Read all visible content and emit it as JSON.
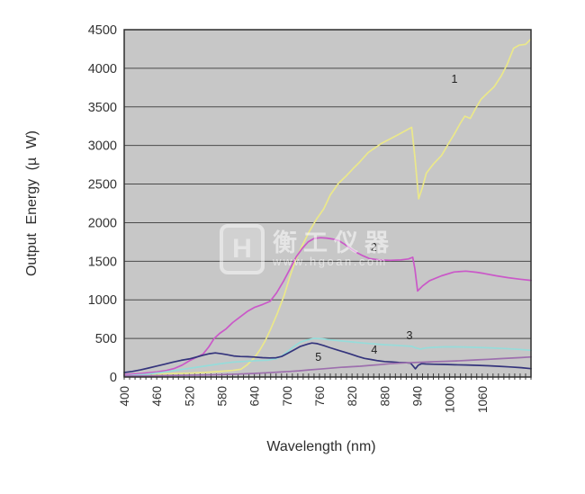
{
  "watermark": {
    "logo_letter": "H",
    "brand": "衡工仪器",
    "url": "www.hgoan.com"
  },
  "chart_data": {
    "type": "line",
    "title": "",
    "xlabel": "Wavelength (nm)",
    "ylabel": "Output Energy (µ W)",
    "xlim": [
      400,
      1150
    ],
    "ylim": [
      0,
      4500
    ],
    "x_ticks": [
      400,
      460,
      520,
      580,
      640,
      700,
      760,
      820,
      880,
      940,
      1000,
      1060
    ],
    "x_minor_tick_step": 10,
    "x_tick_label_rotation": -90,
    "y_ticks": [
      0,
      500,
      1000,
      1500,
      2000,
      2500,
      3000,
      3500,
      4000,
      4500
    ],
    "grid": "horizontal-only",
    "legend": "none (series identified by numeric labels printed on the plot)",
    "colors": {
      "plot_bg": "#c7c7c7",
      "grid_line": "#4a4a4a",
      "plot_border": "#2f2f2f",
      "axis_text": "#333333",
      "series_label_text": "#222222"
    },
    "series": [
      {
        "name": "1",
        "color": "#ebe88a",
        "label_pos": [
          1009,
          3810
        ],
        "points": [
          [
            400,
            30
          ],
          [
            430,
            35
          ],
          [
            460,
            40
          ],
          [
            490,
            45
          ],
          [
            520,
            50
          ],
          [
            550,
            60
          ],
          [
            580,
            75
          ],
          [
            600,
            85
          ],
          [
            615,
            100
          ],
          [
            627,
            160
          ],
          [
            640,
            250
          ],
          [
            650,
            350
          ],
          [
            660,
            470
          ],
          [
            670,
            620
          ],
          [
            682,
            820
          ],
          [
            695,
            1060
          ],
          [
            705,
            1290
          ],
          [
            716,
            1515
          ],
          [
            728,
            1700
          ],
          [
            740,
            1870
          ],
          [
            755,
            2050
          ],
          [
            768,
            2180
          ],
          [
            780,
            2360
          ],
          [
            795,
            2510
          ],
          [
            810,
            2610
          ],
          [
            822,
            2700
          ],
          [
            832,
            2770
          ],
          [
            850,
            2910
          ],
          [
            875,
            3030
          ],
          [
            905,
            3140
          ],
          [
            930,
            3235
          ],
          [
            936,
            2850
          ],
          [
            943,
            2310
          ],
          [
            950,
            2460
          ],
          [
            957,
            2640
          ],
          [
            970,
            2760
          ],
          [
            985,
            2870
          ],
          [
            1000,
            3050
          ],
          [
            1008,
            3140
          ],
          [
            1019,
            3280
          ],
          [
            1028,
            3380
          ],
          [
            1038,
            3350
          ],
          [
            1048,
            3480
          ],
          [
            1058,
            3600
          ],
          [
            1070,
            3680
          ],
          [
            1082,
            3760
          ],
          [
            1095,
            3900
          ],
          [
            1106,
            4050
          ],
          [
            1118,
            4260
          ],
          [
            1128,
            4300
          ],
          [
            1140,
            4310
          ],
          [
            1150,
            4380
          ]
        ]
      },
      {
        "name": "2",
        "color": "#ca58c8",
        "label_pos": [
          860,
          1632
        ],
        "points": [
          [
            400,
            30
          ],
          [
            430,
            45
          ],
          [
            460,
            65
          ],
          [
            478,
            85
          ],
          [
            492,
            110
          ],
          [
            507,
            155
          ],
          [
            520,
            210
          ],
          [
            533,
            255
          ],
          [
            545,
            295
          ],
          [
            556,
            390
          ],
          [
            566,
            500
          ],
          [
            576,
            565
          ],
          [
            588,
            625
          ],
          [
            600,
            705
          ],
          [
            614,
            780
          ],
          [
            628,
            855
          ],
          [
            641,
            905
          ],
          [
            655,
            940
          ],
          [
            669,
            980
          ],
          [
            681,
            1090
          ],
          [
            694,
            1245
          ],
          [
            706,
            1405
          ],
          [
            717,
            1555
          ],
          [
            728,
            1665
          ],
          [
            739,
            1750
          ],
          [
            750,
            1795
          ],
          [
            762,
            1805
          ],
          [
            773,
            1800
          ],
          [
            784,
            1788
          ],
          [
            795,
            1770
          ],
          [
            806,
            1722
          ],
          [
            818,
            1662
          ],
          [
            829,
            1612
          ],
          [
            840,
            1572
          ],
          [
            852,
            1535
          ],
          [
            870,
            1518
          ],
          [
            890,
            1512
          ],
          [
            910,
            1518
          ],
          [
            924,
            1530
          ],
          [
            932,
            1552
          ],
          [
            936,
            1400
          ],
          [
            941,
            1115
          ],
          [
            950,
            1180
          ],
          [
            963,
            1248
          ],
          [
            985,
            1312
          ],
          [
            1008,
            1360
          ],
          [
            1030,
            1372
          ],
          [
            1050,
            1357
          ],
          [
            1063,
            1342
          ],
          [
            1086,
            1312
          ],
          [
            1108,
            1287
          ],
          [
            1130,
            1267
          ],
          [
            1150,
            1252
          ]
        ]
      },
      {
        "name": "3",
        "color": "#96dcda",
        "label_pos": [
          926,
          490
        ],
        "points": [
          [
            400,
            15
          ],
          [
            440,
            35
          ],
          [
            470,
            60
          ],
          [
            500,
            92
          ],
          [
            530,
            122
          ],
          [
            556,
            150
          ],
          [
            580,
            175
          ],
          [
            600,
            192
          ],
          [
            620,
            202
          ],
          [
            645,
            212
          ],
          [
            665,
            218
          ],
          [
            680,
            238
          ],
          [
            690,
            272
          ],
          [
            700,
            322
          ],
          [
            712,
            392
          ],
          [
            725,
            452
          ],
          [
            738,
            482
          ],
          [
            750,
            500
          ],
          [
            765,
            495
          ],
          [
            780,
            481
          ],
          [
            800,
            468
          ],
          [
            820,
            455
          ],
          [
            840,
            441
          ],
          [
            860,
            429
          ],
          [
            880,
            419
          ],
          [
            900,
            412
          ],
          [
            915,
            405
          ],
          [
            930,
            398
          ],
          [
            938,
            376
          ],
          [
            946,
            362
          ],
          [
            956,
            376
          ],
          [
            970,
            385
          ],
          [
            990,
            391
          ],
          [
            1012,
            390
          ],
          [
            1040,
            386
          ],
          [
            1070,
            379
          ],
          [
            1100,
            369
          ],
          [
            1126,
            359
          ],
          [
            1150,
            346
          ]
        ]
      },
      {
        "name": "4",
        "color": "#34347c",
        "label_pos": [
          861,
          303
        ],
        "points": [
          [
            400,
            58
          ],
          [
            415,
            72
          ],
          [
            430,
            92
          ],
          [
            445,
            117
          ],
          [
            460,
            142
          ],
          [
            475,
            167
          ],
          [
            490,
            194
          ],
          [
            505,
            217
          ],
          [
            520,
            234
          ],
          [
            532,
            257
          ],
          [
            545,
            282
          ],
          [
            557,
            302
          ],
          [
            568,
            313
          ],
          [
            580,
            301
          ],
          [
            590,
            289
          ],
          [
            602,
            273
          ],
          [
            614,
            266
          ],
          [
            627,
            263
          ],
          [
            640,
            259
          ],
          [
            655,
            251
          ],
          [
            668,
            247
          ],
          [
            680,
            249
          ],
          [
            690,
            266
          ],
          [
            700,
            302
          ],
          [
            712,
            347
          ],
          [
            725,
            397
          ],
          [
            738,
            427
          ],
          [
            746,
            441
          ],
          [
            756,
            433
          ],
          [
            768,
            407
          ],
          [
            780,
            379
          ],
          [
            793,
            351
          ],
          [
            806,
            323
          ],
          [
            818,
            296
          ],
          [
            831,
            266
          ],
          [
            843,
            241
          ],
          [
            856,
            226
          ],
          [
            868,
            211
          ],
          [
            880,
            201
          ],
          [
            893,
            196
          ],
          [
            906,
            189
          ],
          [
            918,
            186
          ],
          [
            928,
            181
          ],
          [
            933,
            140
          ],
          [
            937,
            106
          ],
          [
            942,
            152
          ],
          [
            948,
            173
          ],
          [
            956,
            169
          ],
          [
            972,
            166
          ],
          [
            990,
            163
          ],
          [
            1010,
            159
          ],
          [
            1030,
            156
          ],
          [
            1050,
            151
          ],
          [
            1072,
            146
          ],
          [
            1092,
            139
          ],
          [
            1112,
            131
          ],
          [
            1132,
            121
          ],
          [
            1150,
            108
          ]
        ]
      },
      {
        "name": "5",
        "color": "#9d6fae",
        "label_pos": [
          758,
          210
        ],
        "points": [
          [
            400,
            12
          ],
          [
            450,
            16
          ],
          [
            500,
            21
          ],
          [
            550,
            27
          ],
          [
            580,
            32
          ],
          [
            610,
            38
          ],
          [
            640,
            47
          ],
          [
            665,
            56
          ],
          [
            685,
            64
          ],
          [
            705,
            72
          ],
          [
            722,
            80
          ],
          [
            740,
            92
          ],
          [
            760,
            103
          ],
          [
            778,
            113
          ],
          [
            800,
            126
          ],
          [
            820,
            134
          ],
          [
            835,
            140
          ],
          [
            852,
            150
          ],
          [
            870,
            160
          ],
          [
            890,
            172
          ],
          [
            905,
            178
          ],
          [
            920,
            184
          ],
          [
            935,
            188
          ],
          [
            950,
            192
          ],
          [
            970,
            198
          ],
          [
            990,
            203
          ],
          [
            1012,
            209
          ],
          [
            1032,
            216
          ],
          [
            1052,
            223
          ],
          [
            1072,
            230
          ],
          [
            1092,
            238
          ],
          [
            1112,
            245
          ],
          [
            1132,
            252
          ],
          [
            1150,
            260
          ]
        ]
      }
    ]
  }
}
